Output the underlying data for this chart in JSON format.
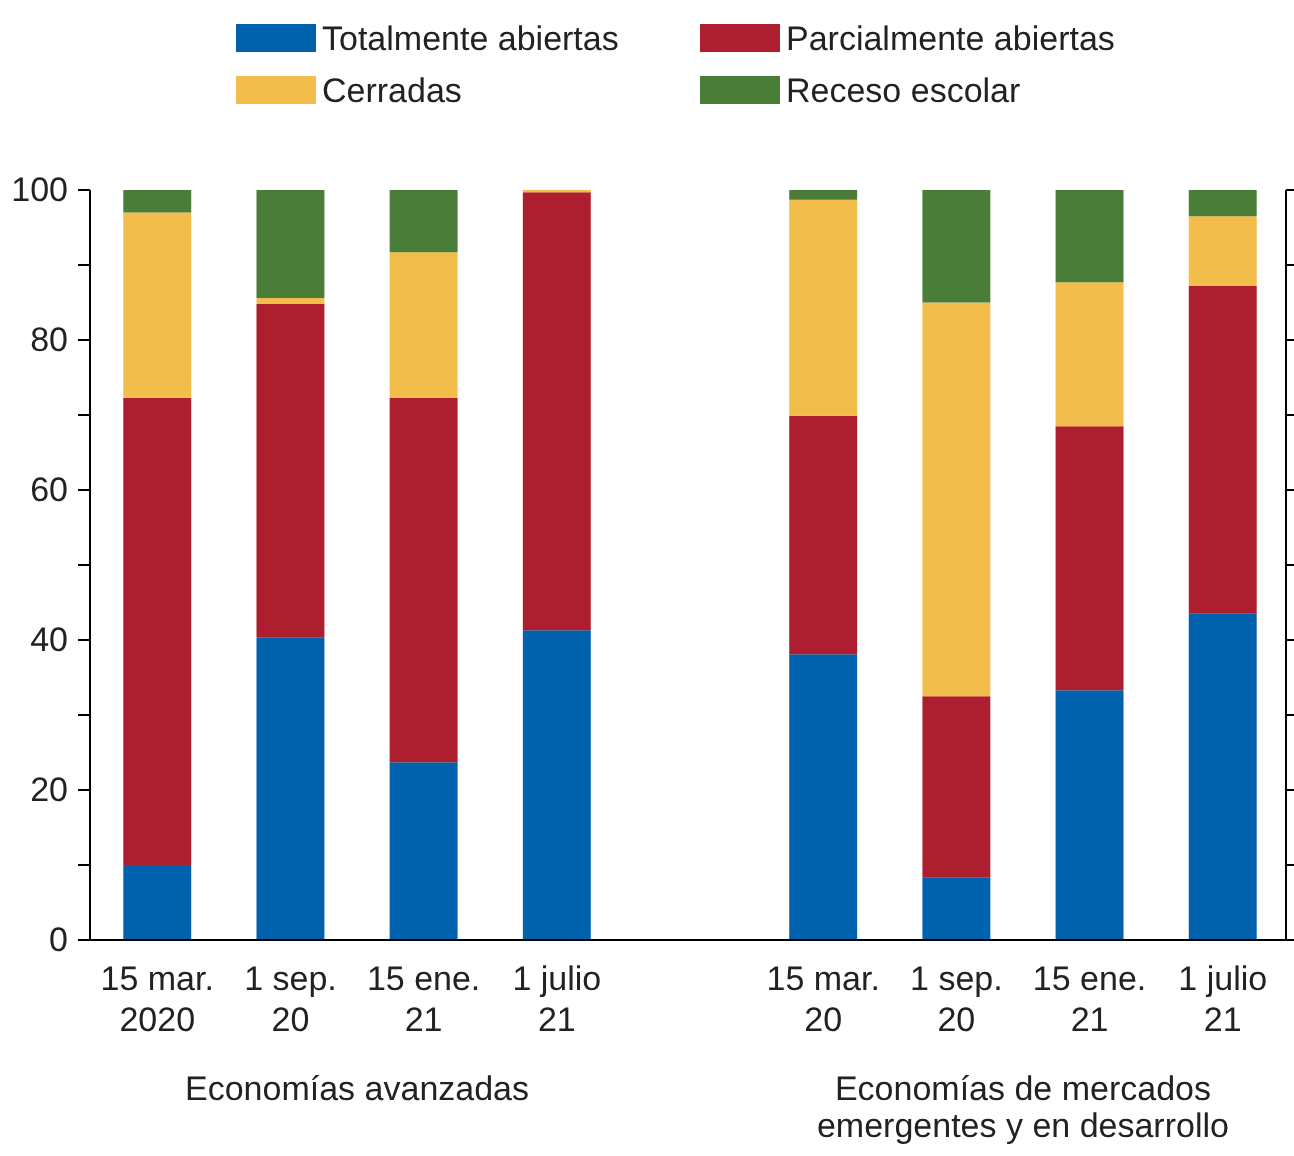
{
  "chart_data": {
    "type": "bar",
    "stacked": true,
    "legend": "top",
    "categories": [
      "15 mar.\n2020",
      "1 sep.\n20",
      "15 ene.\n21",
      "1 julio\n21",
      null,
      "15 mar.\n20",
      "1 sep.\n20",
      "15 ene.\n21",
      "1 julio\n21"
    ],
    "series": [
      {
        "name": "Totalmente abiertas",
        "color": "#0061ad",
        "values": [
          10,
          40.3,
          23.7,
          41.3,
          null,
          38.1,
          8.3,
          33.3,
          43.5
        ]
      },
      {
        "name": "Parcialmente abiertas",
        "color": "#ad1f2e",
        "values": [
          62.3,
          44.5,
          48.6,
          58.4,
          null,
          31.8,
          24.2,
          35.2,
          43.7
        ]
      },
      {
        "name": "Cerradas",
        "color": "#f3bd4b",
        "values": [
          24.7,
          0.8,
          19.4,
          0.3,
          null,
          28.8,
          52.5,
          19.2,
          9.3
        ]
      },
      {
        "name": "Receso escolar",
        "color": "#4a7d38",
        "values": [
          3,
          14.4,
          8.3,
          0,
          null,
          1.3,
          15,
          12.3,
          3.5
        ]
      }
    ],
    "ylim": [
      0,
      100
    ],
    "yticks": [
      0,
      {
        "value": 10,
        "label": null
      },
      20,
      {
        "value": 30,
        "label": null
      },
      40,
      {
        "value": 50,
        "label": null
      },
      60,
      {
        "value": 70,
        "label": null
      },
      80,
      {
        "value": 90,
        "label": null
      },
      100
    ],
    "annotations": [
      "Economías avanzadas",
      "Economías de mercados emergentes y en desarrollo"
    ]
  }
}
